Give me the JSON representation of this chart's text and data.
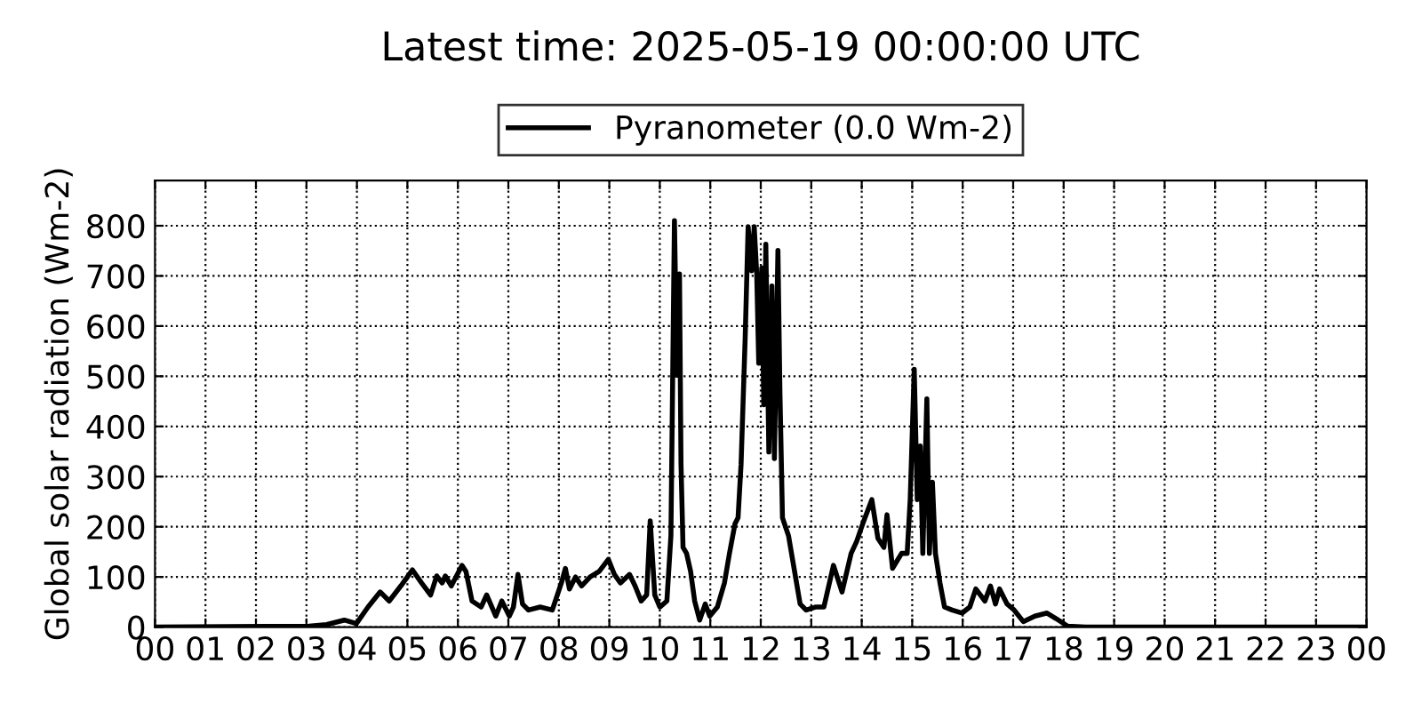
{
  "chart_data": {
    "type": "line",
    "title": "Latest time: 2025-05-19 00:00:00 UTC",
    "ylabel": "Global solar radiation (Wm-2)",
    "xlim": [
      0,
      24
    ],
    "ylim": [
      0,
      890
    ],
    "xticks": [
      {
        "value": 0,
        "label": "00"
      },
      {
        "value": 1,
        "label": "01"
      },
      {
        "value": 2,
        "label": "02"
      },
      {
        "value": 3,
        "label": "03"
      },
      {
        "value": 4,
        "label": "04"
      },
      {
        "value": 5,
        "label": "05"
      },
      {
        "value": 6,
        "label": "06"
      },
      {
        "value": 7,
        "label": "07"
      },
      {
        "value": 8,
        "label": "08"
      },
      {
        "value": 9,
        "label": "09"
      },
      {
        "value": 10,
        "label": "10"
      },
      {
        "value": 11,
        "label": "11"
      },
      {
        "value": 12,
        "label": "12"
      },
      {
        "value": 13,
        "label": "13"
      },
      {
        "value": 14,
        "label": "14"
      },
      {
        "value": 15,
        "label": "15"
      },
      {
        "value": 16,
        "label": "16"
      },
      {
        "value": 17,
        "label": "17"
      },
      {
        "value": 18,
        "label": "18"
      },
      {
        "value": 19,
        "label": "19"
      },
      {
        "value": 20,
        "label": "20"
      },
      {
        "value": 21,
        "label": "21"
      },
      {
        "value": 22,
        "label": "22"
      },
      {
        "value": 23,
        "label": "23"
      },
      {
        "value": 24,
        "label": "00"
      }
    ],
    "yticks": [
      0,
      100,
      200,
      300,
      400,
      500,
      600,
      700,
      800
    ],
    "grid": true,
    "legend": "top",
    "marker": "none",
    "line_style": "solid",
    "series": [
      {
        "name": "Pyranometer (0.0 Wm-2)",
        "color": "#000000",
        "x": [
          0,
          3.05,
          3.4,
          3.75,
          3.99,
          4.22,
          4.46,
          4.64,
          4.87,
          5.1,
          5.28,
          5.46,
          5.58,
          5.69,
          5.75,
          5.87,
          6.08,
          6.16,
          6.28,
          6.46,
          6.57,
          6.75,
          6.87,
          7.02,
          7.1,
          7.19,
          7.28,
          7.4,
          7.63,
          7.87,
          8.05,
          8.13,
          8.21,
          8.33,
          8.45,
          8.62,
          8.8,
          8.98,
          9.1,
          9.22,
          9.4,
          9.51,
          9.63,
          9.74,
          9.81,
          9.9,
          10.0,
          10.14,
          10.22,
          10.29,
          10.34,
          10.39,
          10.42,
          10.46,
          10.53,
          10.61,
          10.69,
          10.79,
          10.9,
          10.99,
          11.14,
          11.28,
          11.38,
          11.49,
          11.55,
          11.61,
          11.69,
          11.75,
          11.82,
          11.87,
          11.92,
          11.96,
          12.02,
          12.06,
          12.1,
          12.16,
          12.22,
          12.27,
          12.34,
          12.38,
          12.43,
          12.55,
          12.67,
          12.78,
          12.9,
          13.08,
          13.25,
          13.44,
          13.61,
          13.79,
          13.9,
          14.02,
          14.2,
          14.32,
          14.44,
          14.5,
          14.61,
          14.79,
          14.9,
          14.96,
          15.04,
          15.1,
          15.16,
          15.21,
          15.29,
          15.34,
          15.4,
          15.46,
          15.55,
          15.64,
          15.79,
          15.99,
          16.14,
          16.26,
          16.44,
          16.55,
          16.65,
          16.73,
          16.88,
          17.02,
          17.2,
          17.43,
          17.67,
          17.85,
          18.08,
          18.43,
          24
        ],
        "values": [
          0,
          2,
          5,
          14,
          7,
          40,
          70,
          52,
          82,
          114,
          88,
          64,
          102,
          88,
          102,
          82,
          123,
          111,
          52,
          40,
          64,
          22,
          52,
          22,
          40,
          105,
          46,
          34,
          40,
          34,
          88,
          117,
          76,
          100,
          82,
          100,
          111,
          135,
          105,
          88,
          105,
          82,
          52,
          64,
          212,
          64,
          40,
          52,
          182,
          810,
          502,
          704,
          325,
          159,
          147,
          111,
          52,
          14,
          46,
          22,
          40,
          88,
          147,
          206,
          218,
          325,
          573,
          798,
          710,
          798,
          704,
          526,
          716,
          443,
          763,
          349,
          680,
          336,
          751,
          466,
          218,
          182,
          111,
          46,
          34,
          40,
          40,
          123,
          70,
          147,
          171,
          206,
          254,
          177,
          159,
          224,
          117,
          147,
          147,
          254,
          514,
          254,
          361,
          147,
          455,
          147,
          289,
          147,
          88,
          40,
          34,
          28,
          40,
          76,
          52,
          82,
          46,
          76,
          46,
          34,
          11,
          22,
          28,
          17,
          2,
          0,
          0
        ]
      }
    ]
  }
}
